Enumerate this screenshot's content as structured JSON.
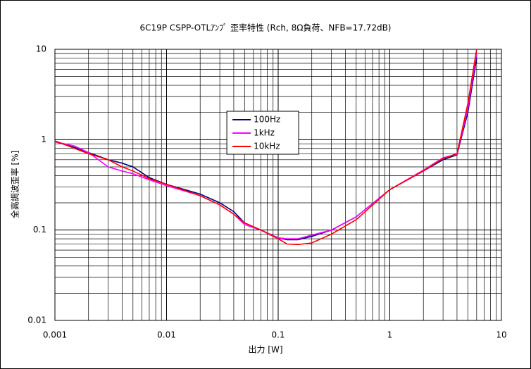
{
  "chart_data": {
    "type": "line",
    "title": "6C19P CSPP-OTLｱﾝﾌﾟ 歪率特性 (Rch, 8Ω負荷、NFB=17.72dB)",
    "xlabel": "出力 [W]",
    "ylabel": "全高調波歪率 [%]",
    "xscale": "log",
    "yscale": "log",
    "grid": true,
    "minor_grid": true,
    "legend": "center",
    "xlim": [
      0.001,
      10
    ],
    "xticks": [
      0.001,
      0.01,
      0.1,
      1,
      10
    ],
    "ylim": [
      0.01,
      10
    ],
    "yticks": [
      0.01,
      0.1,
      1,
      10
    ],
    "x": [
      0.001,
      0.0015,
      0.002,
      0.003,
      0.004,
      0.005,
      0.007,
      0.01,
      0.02,
      0.03,
      0.04,
      0.05,
      0.07,
      0.1,
      0.12,
      0.15,
      0.2,
      0.3,
      0.5,
      1,
      2,
      3,
      4,
      5,
      6
    ],
    "series": [
      {
        "name": "100Hz",
        "color": "#000080",
        "values": [
          0.95,
          0.82,
          0.72,
          0.6,
          0.55,
          0.5,
          0.38,
          0.32,
          0.25,
          0.2,
          0.16,
          0.12,
          0.1,
          0.082,
          0.078,
          0.078,
          0.085,
          0.1,
          0.14,
          0.28,
          0.45,
          0.6,
          0.68,
          2.0,
          8
        ]
      },
      {
        "name": "1kHz",
        "color": "#ff00ff",
        "values": [
          0.95,
          0.85,
          0.72,
          0.5,
          0.45,
          0.42,
          0.36,
          0.31,
          0.24,
          0.19,
          0.15,
          0.115,
          0.1,
          0.082,
          0.08,
          0.08,
          0.088,
          0.1,
          0.14,
          0.28,
          0.46,
          0.63,
          0.69,
          2.2,
          9
        ]
      },
      {
        "name": "10kHz",
        "color": "#ff0000",
        "values": [
          0.97,
          0.8,
          0.7,
          0.6,
          0.5,
          0.45,
          0.37,
          0.32,
          0.24,
          0.19,
          0.15,
          0.12,
          0.1,
          0.08,
          0.07,
          0.069,
          0.072,
          0.09,
          0.13,
          0.28,
          0.45,
          0.62,
          0.7,
          2.5,
          10
        ]
      }
    ]
  }
}
